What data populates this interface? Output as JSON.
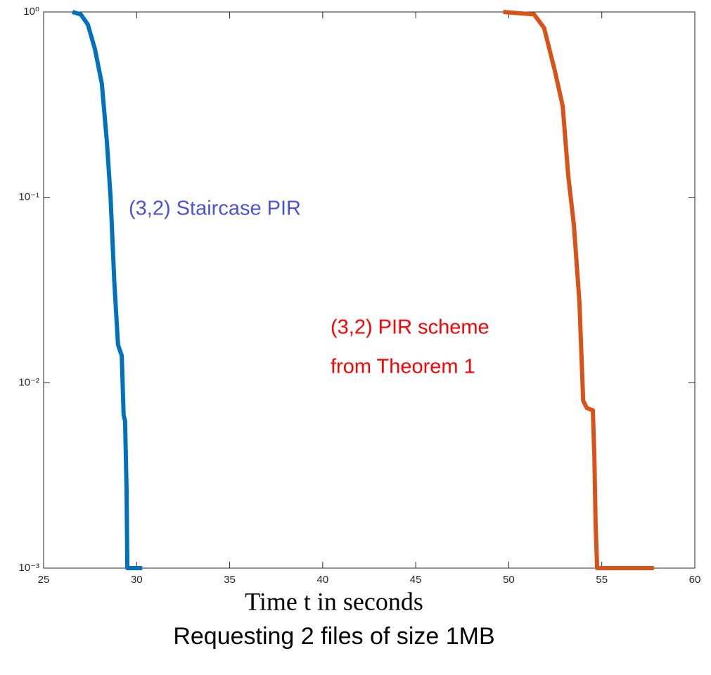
{
  "chart_data": {
    "type": "line",
    "title": "Requesting 2 files of size 1MB",
    "x_label": "Time t in seconds",
    "log_y": true,
    "xlim": [
      25,
      60
    ],
    "xticks": [
      25,
      30,
      35,
      40,
      45,
      50,
      55,
      60
    ],
    "ylim": [
      0.001,
      1
    ],
    "yticks": [
      {
        "value": 0.001,
        "label": "10⁻³"
      },
      {
        "value": 0.01,
        "label": "10⁻²"
      },
      {
        "value": 0.1,
        "label": "10⁻¹"
      },
      {
        "value": 1,
        "label": "10⁰"
      }
    ],
    "series": [
      {
        "color": "#0072BD",
        "x": [
          26.55,
          27.0,
          27.38,
          27.76,
          28.13,
          28.4,
          28.6,
          28.8,
          29.0,
          29.2,
          29.3,
          29.38,
          29.46,
          29.5,
          30.3
        ],
        "values": [
          1,
          0.97,
          0.855,
          0.63,
          0.41,
          0.2,
          0.1,
          0.035,
          0.016,
          0.014,
          0.0067,
          0.0062,
          0.0026,
          0.001,
          0.001
        ]
      },
      {
        "color": "#D95319",
        "x": [
          49.7,
          51.36,
          51.9,
          52.48,
          52.9,
          53.2,
          53.5,
          53.8,
          54.0,
          54.2,
          54.52,
          54.6,
          54.67,
          54.75,
          57.8
        ],
        "values": [
          1,
          0.97,
          0.82,
          0.48,
          0.31,
          0.13,
          0.071,
          0.027,
          0.008,
          0.0073,
          0.0071,
          0.004,
          0.0017,
          0.001,
          0.001
        ]
      }
    ],
    "annotations": [
      {
        "text": "(3,2) Staircase PIR",
        "color": "#4a52d6"
      },
      {
        "text": "(3,2) PIR scheme",
        "color": "#ff0000"
      },
      {
        "text": "from Theorem 1",
        "color": "#ff0000"
      }
    ]
  }
}
